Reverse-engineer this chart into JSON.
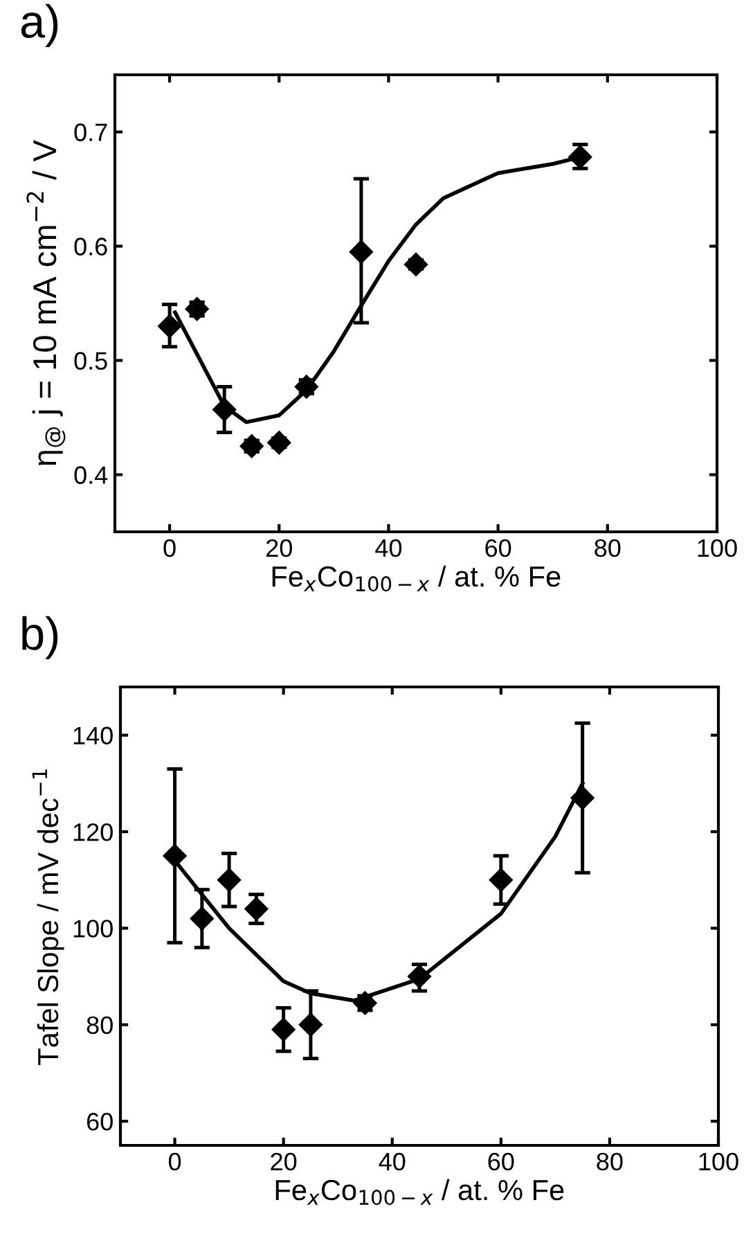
{
  "chart_data": [
    {
      "type": "scatter",
      "title": "a)",
      "xlabel": "Fe$_{x}$Co$_{100−x}$ / at. % Fe",
      "ylabel": "η$_{@}$ j = 10 mA cm$^{−2}$ / V",
      "xlim": [
        -10,
        100
      ],
      "xticks": [
        0,
        20,
        40,
        60,
        80,
        100
      ],
      "ylim": [
        0.35,
        0.75
      ],
      "yticks": [
        0.4,
        0.5,
        0.6,
        0.7
      ],
      "grid": false,
      "marker": "diamond",
      "series": [
        {
          "color": "#000000",
          "x": [
            0,
            5,
            10,
            15,
            20,
            25,
            35,
            45,
            75
          ],
          "values": [
            0.53,
            0.545,
            0.457,
            0.425,
            0.428,
            0.477,
            0.595,
            0.584,
            0.678
          ],
          "errors": [
            [
              0.512,
              0.549
            ],
            [
              0.539,
              0.551
            ],
            [
              0.437,
              0.477
            ],
            [
              0.42,
              0.43
            ],
            [
              0.424,
              0.432
            ],
            [
              0.471,
              0.483
            ],
            [
              0.533,
              0.659
            ],
            [
              0.58,
              0.588
            ],
            [
              0.668,
              0.689
            ]
          ]
        },
        {
          "type": "line",
          "color": "#000000",
          "marker": "none",
          "line_style": "solid",
          "x": [
            1,
            10,
            14,
            20,
            25,
            30,
            35,
            40,
            45,
            50,
            60,
            70,
            75
          ],
          "values": [
            0.542,
            0.46,
            0.446,
            0.452,
            0.474,
            0.508,
            0.548,
            0.587,
            0.619,
            0.642,
            0.664,
            0.672,
            0.678
          ]
        }
      ]
    },
    {
      "type": "scatter",
      "title": "b)",
      "xlabel": "Fe$_{x}$Co$_{100−x}$ / at. % Fe",
      "ylabel": "Tafel Slope / mV dec$^{−1}$",
      "xlim": [
        -10,
        100
      ],
      "xticks": [
        0,
        20,
        40,
        60,
        80,
        100
      ],
      "ylim": [
        55,
        150
      ],
      "yticks": [
        60,
        80,
        100,
        120,
        140
      ],
      "grid": false,
      "marker": "diamond",
      "series": [
        {
          "color": "#000000",
          "x": [
            0,
            5,
            10,
            15,
            20,
            25,
            35,
            45,
            60,
            75
          ],
          "values": [
            115,
            102,
            110,
            104,
            79,
            80,
            84.5,
            90,
            110,
            127
          ],
          "errors": [
            [
              97,
              133
            ],
            [
              96,
              108
            ],
            [
              104.5,
              115.5
            ],
            [
              101,
              107
            ],
            [
              74.5,
              83.5
            ],
            [
              73,
              87
            ],
            [
              83,
              86
            ],
            [
              87,
              92.5
            ],
            [
              105,
              115
            ],
            [
              111.5,
              142.5
            ]
          ]
        },
        {
          "type": "line",
          "color": "#000000",
          "marker": "none",
          "line_style": "solid",
          "x": [
            0,
            5,
            10,
            20,
            25,
            33,
            45,
            60,
            70,
            75
          ],
          "values": [
            114,
            107,
            100,
            89,
            86.5,
            85,
            89.5,
            103,
            119,
            130
          ]
        }
      ]
    }
  ]
}
